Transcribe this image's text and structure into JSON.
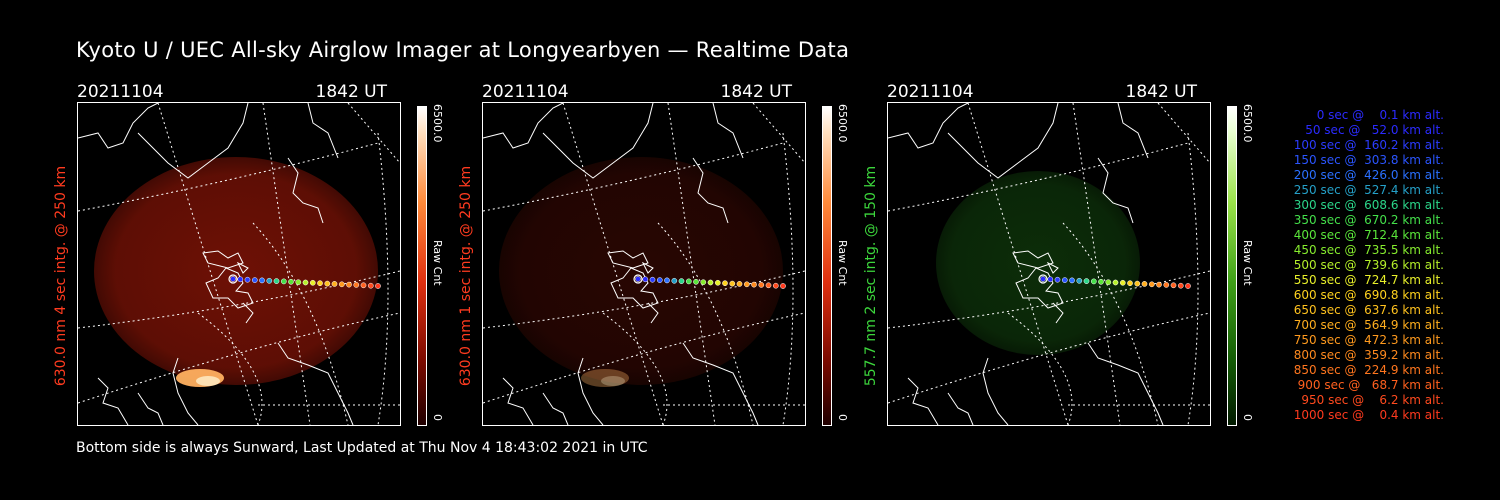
{
  "title": "Kyoto U / UEC All-sky Airglow Imager at Longyearbyen — Realtime Data",
  "footer": "Bottom side is always Sunward, Last Updated at Thu Nov  4 18:43:02 2021 in UTC",
  "panels": [
    {
      "date": "20211104",
      "time": "1842 UT",
      "label": "630.0 nm 4 sec intg. @ 250 km",
      "label_color": "#ff3b1f",
      "cbar_max": "6500.0",
      "cbar_min": "0",
      "cbar_unit": "Raw Cnt",
      "theme": "red",
      "glow_level": 0.55
    },
    {
      "date": "20211104",
      "time": "1842 UT",
      "label": "630.0 nm 1 sec intg. @ 250 km",
      "label_color": "#ff3b1f",
      "cbar_max": "6500.0",
      "cbar_min": "0",
      "cbar_unit": "Raw Cnt",
      "theme": "red",
      "glow_level": 0.2
    },
    {
      "date": "20211104",
      "time": "1842 UT",
      "label": "557.7 nm 2 sec intg. @ 150 km",
      "label_color": "#3cd63c",
      "cbar_max": "6500.0",
      "cbar_min": "0",
      "cbar_unit": "Raw Cnt",
      "theme": "green",
      "glow_level": 0.3
    }
  ],
  "legend": [
    {
      "text": "0 sec @    0.1 km alt.",
      "color": "#2b2bff"
    },
    {
      "text": "50 sec @   52.0 km alt.",
      "color": "#2b2bff"
    },
    {
      "text": "100 sec @  160.2 km alt.",
      "color": "#2b3cff"
    },
    {
      "text": "150 sec @  303.8 km alt.",
      "color": "#2b55ff"
    },
    {
      "text": "200 sec @  426.0 km alt.",
      "color": "#2b70ff"
    },
    {
      "text": "250 sec @  527.4 km alt.",
      "color": "#25a0c8"
    },
    {
      "text": "300 sec @  608.6 km alt.",
      "color": "#2bd68a"
    },
    {
      "text": "350 sec @  670.2 km alt.",
      "color": "#44e04a"
    },
    {
      "text": "400 sec @  712.4 km alt.",
      "color": "#5ae63a"
    },
    {
      "text": "450 sec @  735.5 km alt.",
      "color": "#86ec2e"
    },
    {
      "text": "500 sec @  739.6 km alt.",
      "color": "#b5f02a"
    },
    {
      "text": "550 sec @  724.7 km alt.",
      "color": "#e8f02a"
    },
    {
      "text": "600 sec @  690.8 km alt.",
      "color": "#ffd21e"
    },
    {
      "text": "650 sec @  637.6 km alt.",
      "color": "#ffc21e"
    },
    {
      "text": "700 sec @  564.9 km alt.",
      "color": "#ffae1e"
    },
    {
      "text": "750 sec @  472.3 km alt.",
      "color": "#ff9a1e"
    },
    {
      "text": "800 sec @  359.2 km alt.",
      "color": "#ff8a1e"
    },
    {
      "text": "850 sec @  224.9 km alt.",
      "color": "#ff761e"
    },
    {
      "text": "900 sec @   68.7 km alt.",
      "color": "#ff601e"
    },
    {
      "text": "950 sec @    6.2 km alt.",
      "color": "#ff4a1e"
    },
    {
      "text": "1000 sec @    0.4 km alt.",
      "color": "#ff3a1e"
    }
  ]
}
